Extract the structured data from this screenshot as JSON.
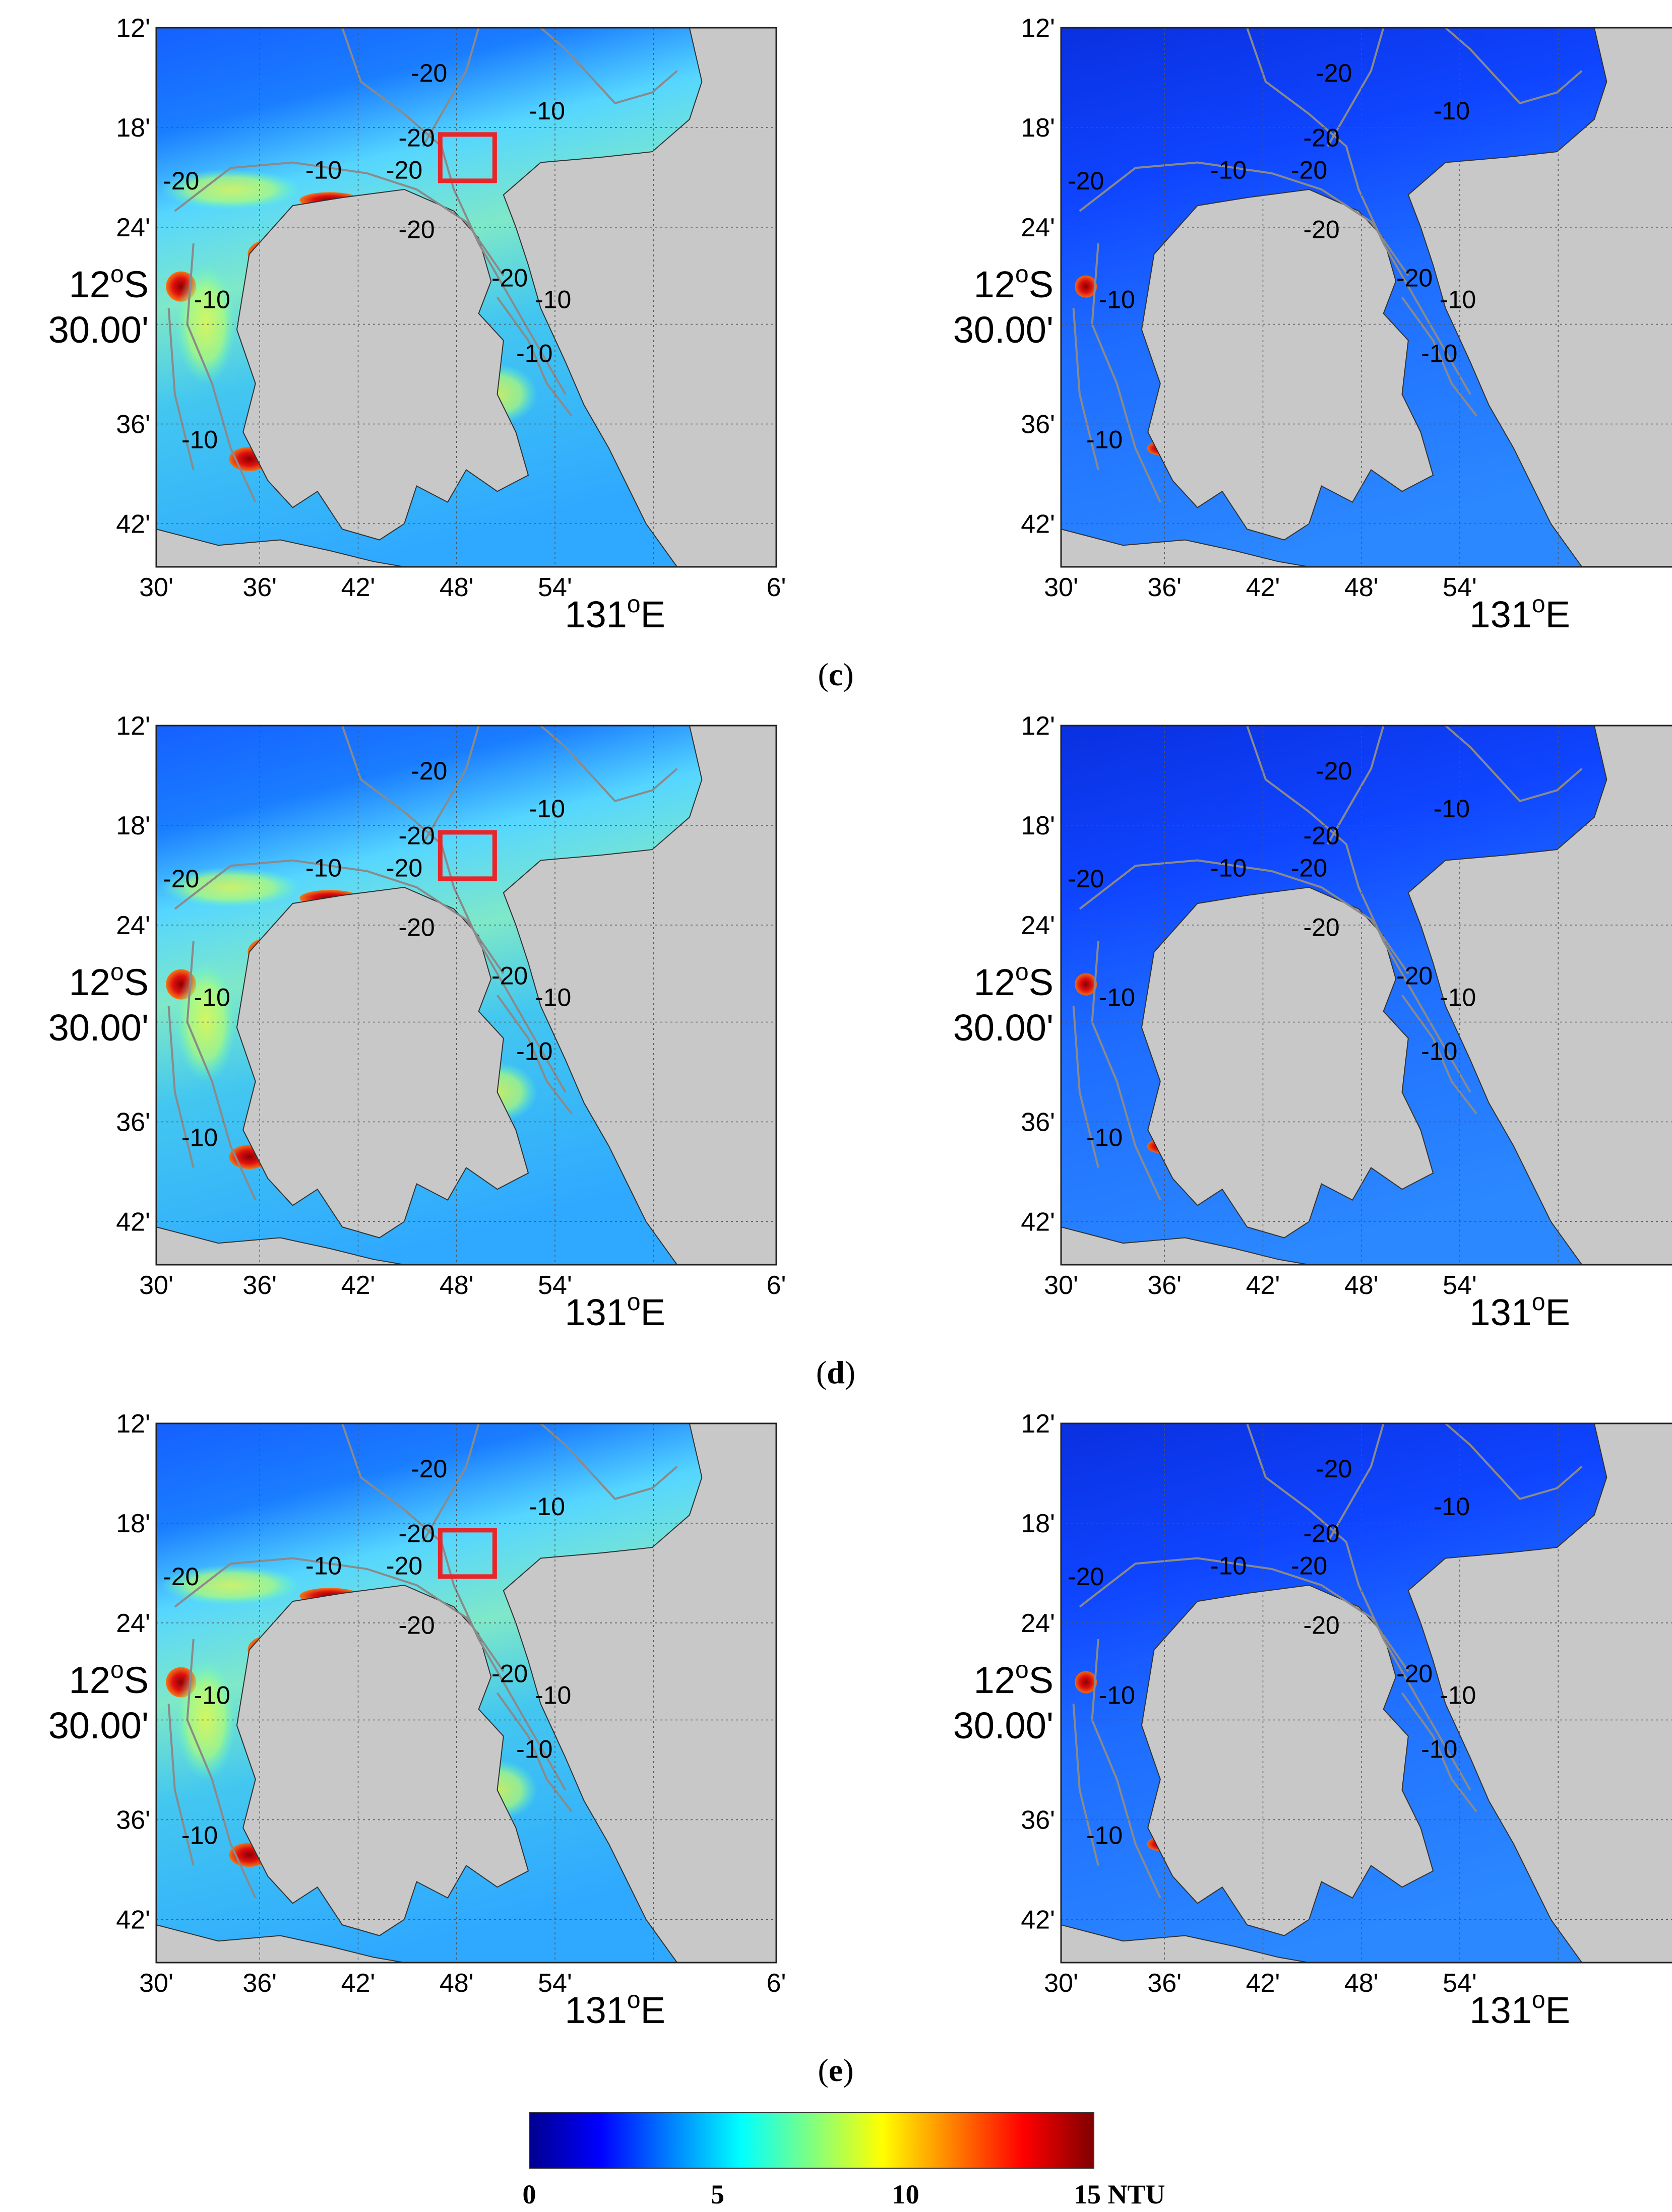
{
  "colors": {
    "land": "#c8c8c8",
    "contour": "#8a8a8a",
    "study_box": "#e8262a",
    "colormap": [
      "#00008f",
      "#0000ff",
      "#0080ff",
      "#00ffff",
      "#80ff80",
      "#ffff00",
      "#ff8000",
      "#ff0000",
      "#800000"
    ]
  },
  "map_axes": {
    "x_ticks": [
      "30'",
      "36'",
      "42'",
      "48'",
      "54'",
      "6'"
    ],
    "x_coord_label": {
      "base": "131",
      "sup": "o",
      "suffix": "E"
    },
    "y_ticks": [
      "12'",
      "18'",
      "24'",
      "36'",
      "42'"
    ],
    "y_coord_label": {
      "line1_base": "12",
      "line1_sup": "o",
      "line1_suffix": "S",
      "line2": "30.00'"
    }
  },
  "contour_labels": [
    "-20",
    "-10",
    "-20",
    "-20",
    "-10",
    "-20",
    "-20",
    "-10",
    "-20",
    "-10",
    "-10",
    "-10"
  ],
  "panels": [
    {
      "row_label": "(c)",
      "column": "left",
      "study_box": true,
      "turbidity": "high"
    },
    {
      "row_label": "(c)",
      "column": "right",
      "study_box": false,
      "turbidity": "low"
    },
    {
      "row_label": "(d)",
      "column": "left",
      "study_box": true,
      "turbidity": "high"
    },
    {
      "row_label": "(d)",
      "column": "right",
      "study_box": false,
      "turbidity": "low"
    },
    {
      "row_label": "(e)",
      "column": "left",
      "study_box": true,
      "turbidity": "high"
    },
    {
      "row_label": "(e)",
      "column": "right",
      "study_box": false,
      "turbidity": "low"
    }
  ],
  "row_labels": [
    "(c)",
    "(d)",
    "(e)"
  ],
  "colorbar": {
    "tick_labels": [
      "0",
      "5",
      "10",
      "15 NTU"
    ],
    "tick_values": [
      0,
      5,
      10,
      15
    ],
    "min": 0,
    "max": 15,
    "unit": "NTU"
  }
}
